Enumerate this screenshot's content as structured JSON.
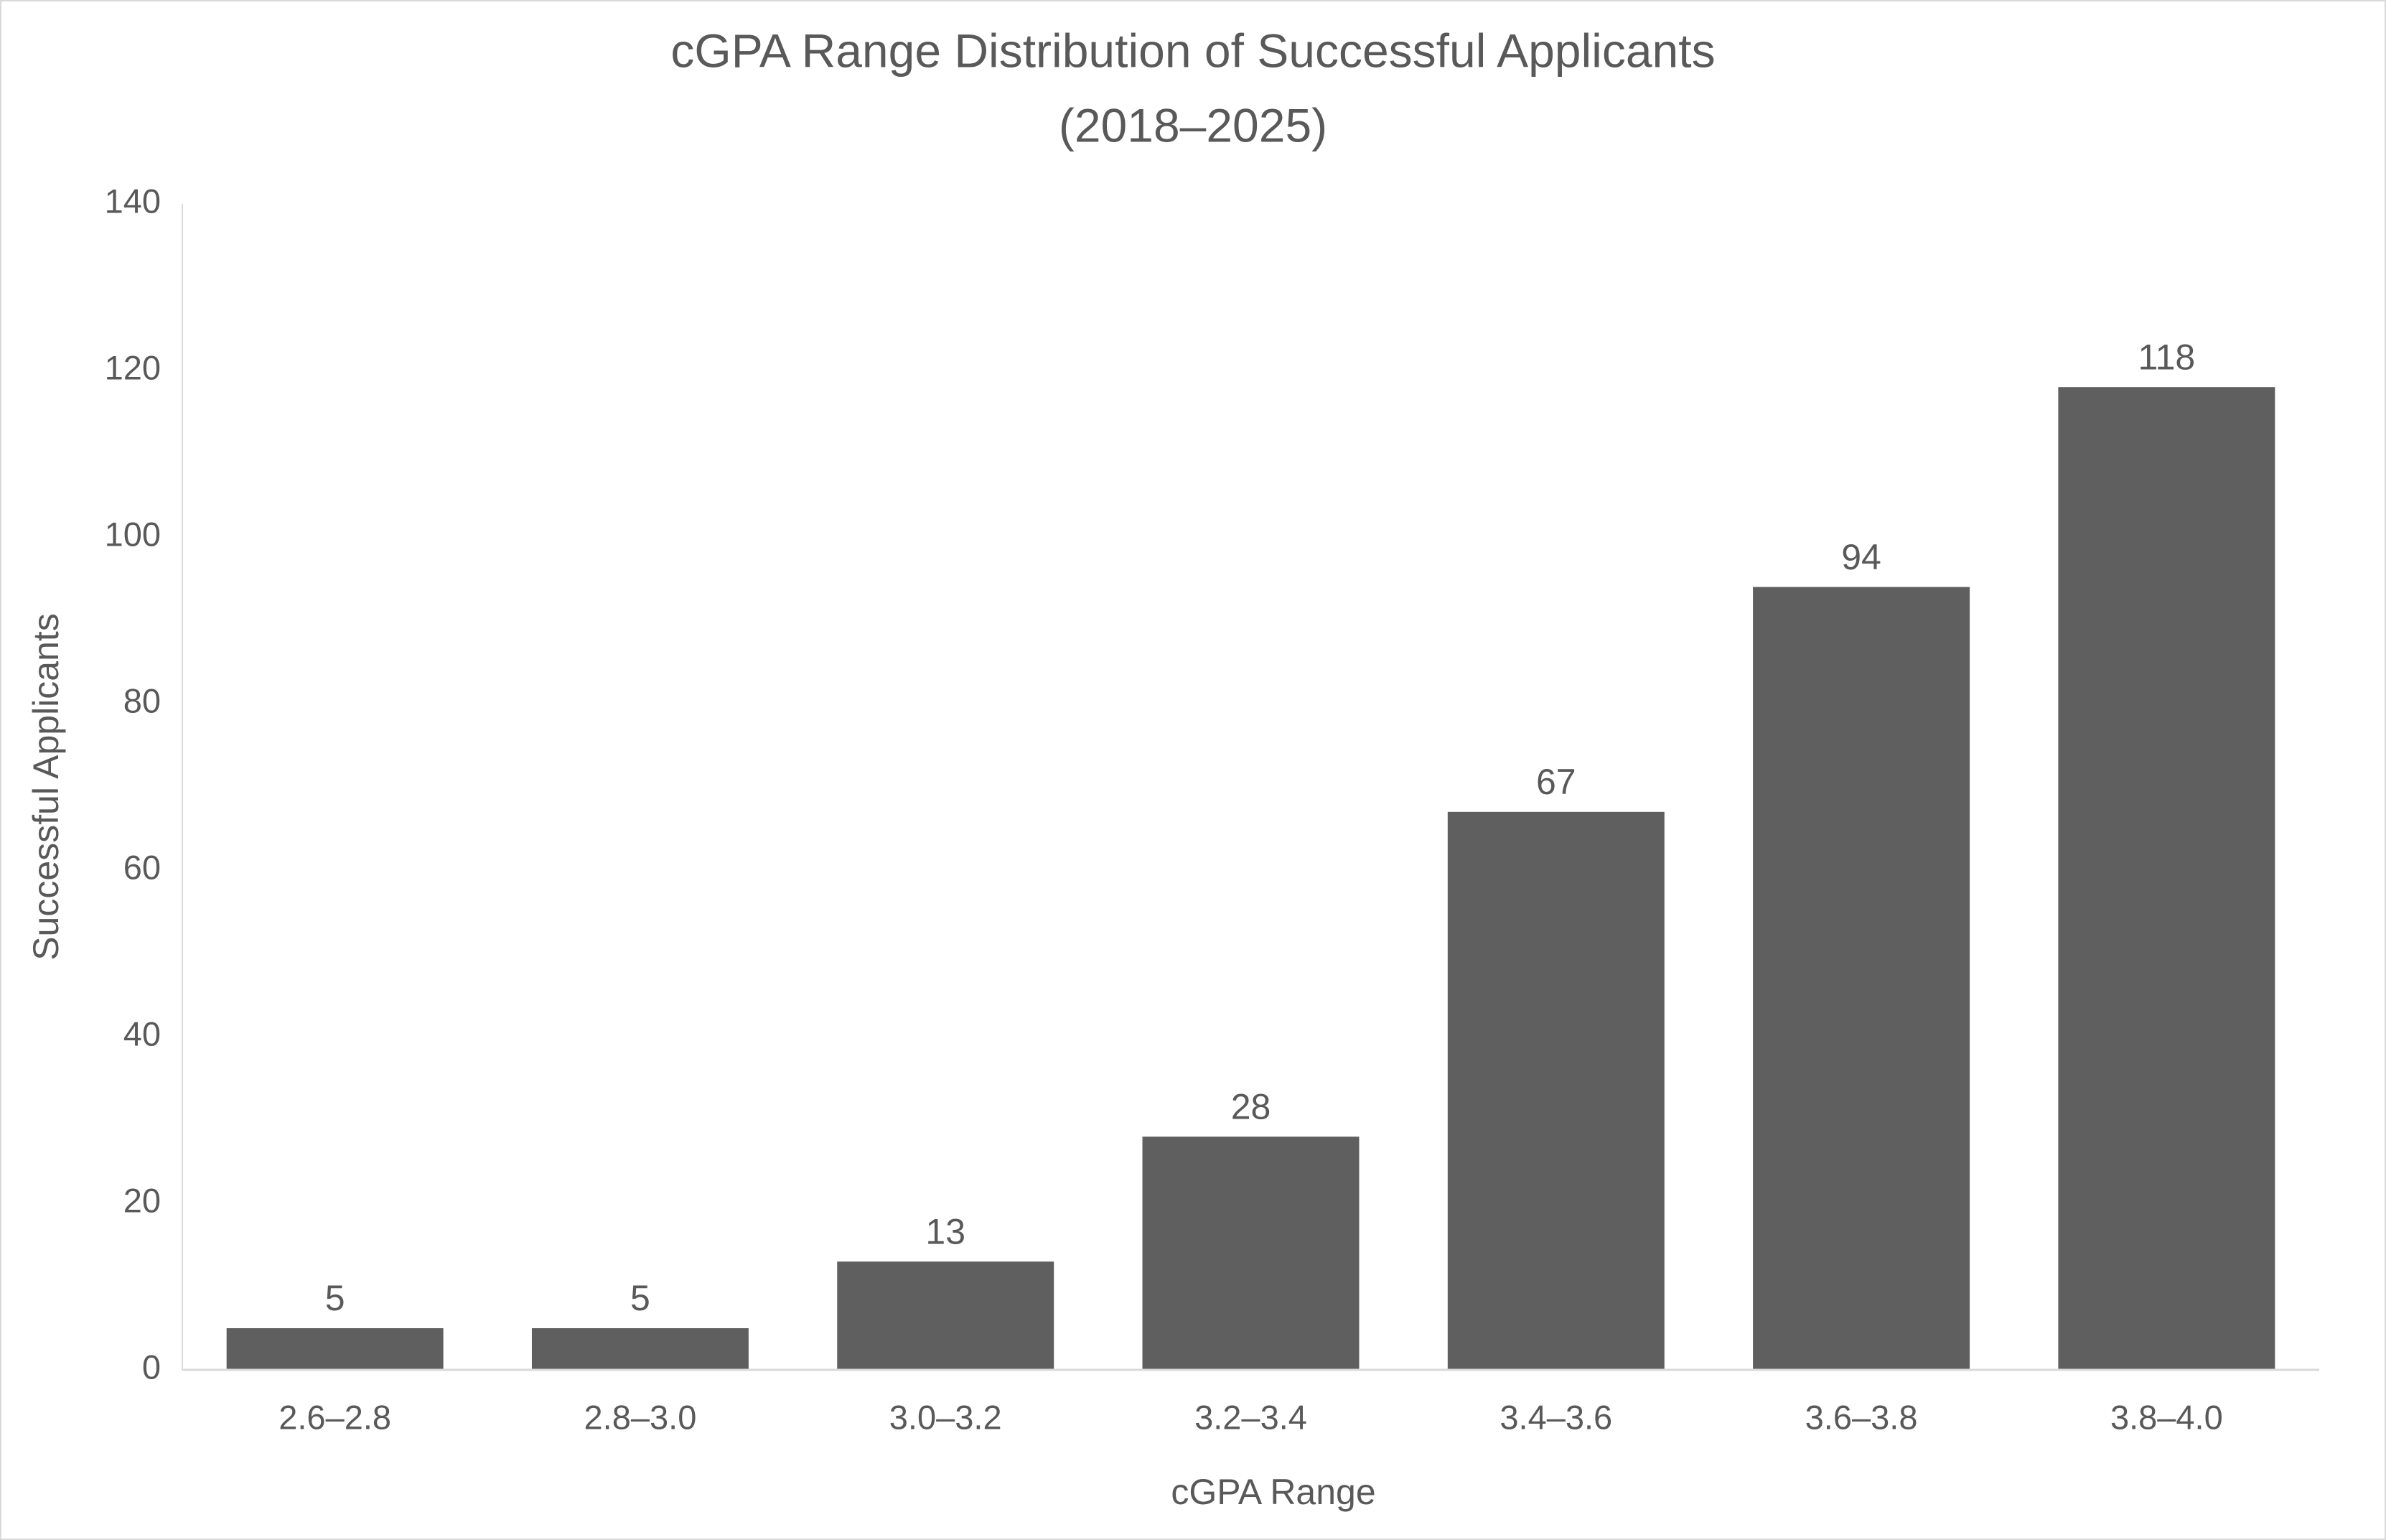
{
  "chart_data": {
    "type": "bar",
    "title": [
      "cGPA Range Distribution of Successful Applicants",
      "(2018–2025)"
    ],
    "x_label": "cGPA Range",
    "y_label": "Successful Applicants",
    "categories": [
      "2.6–2.8",
      "2.8–3.0",
      "3.0–3.2",
      "3.2–3.4",
      "3.4–3.6",
      "3.6–3.8",
      "3.8–4.0"
    ],
    "values": [
      5,
      5,
      13,
      28,
      67,
      94,
      118
    ],
    "color": "#5f5f5f",
    "ylim": [
      0,
      140
    ],
    "yticks": [
      0,
      20,
      40,
      60,
      80,
      100,
      120,
      140
    ],
    "grid": false
  }
}
